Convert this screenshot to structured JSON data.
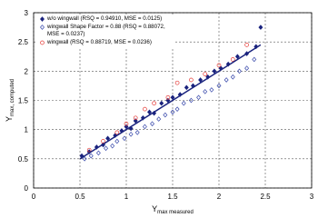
{
  "chart_data": {
    "type": "scatter",
    "x_label": {
      "main": "Y",
      "sub": "max measured"
    },
    "y_label": {
      "main": "Y",
      "sub": "max, computed"
    },
    "xlim": [
      0,
      3
    ],
    "ylim": [
      0,
      3
    ],
    "xticks": [
      0,
      0.5,
      1,
      1.5,
      2,
      2.5,
      3
    ],
    "yticks": [
      0,
      0.5,
      1,
      1.5,
      2,
      2.5,
      3
    ],
    "grid": true,
    "legend": "upper left",
    "series": [
      {
        "name": "w/o wingwall (RSQ = 0.94910, MSE = 0.0125)",
        "color": "#1a237e",
        "marker": "filled-diamond",
        "x": [
          0.52,
          0.6,
          0.68,
          0.75,
          0.8,
          0.88,
          0.95,
          1.0,
          1.05,
          1.1,
          1.18,
          1.25,
          1.3,
          1.38,
          1.45,
          1.5,
          1.58,
          1.65,
          1.72,
          1.8,
          1.88,
          1.95,
          2.02,
          2.1,
          2.2,
          2.3,
          2.4,
          2.45
        ],
        "values": [
          0.55,
          0.62,
          0.7,
          0.74,
          0.85,
          0.9,
          0.98,
          1.05,
          1.02,
          1.15,
          1.2,
          1.3,
          1.28,
          1.45,
          1.5,
          1.55,
          1.6,
          1.72,
          1.75,
          1.85,
          1.9,
          2.0,
          2.05,
          2.12,
          2.25,
          2.3,
          2.42,
          2.75
        ]
      },
      {
        "name": "wingwall Shape Factor = 0.88 (RSQ = 0.88072, MSE = 0.0237)",
        "color": "#3949ab",
        "marker": "open-diamond",
        "x": [
          0.55,
          0.62,
          0.7,
          0.78,
          0.85,
          0.9,
          0.98,
          1.05,
          1.12,
          1.2,
          1.28,
          1.35,
          1.42,
          1.5,
          1.55,
          1.62,
          1.7,
          1.78,
          1.85,
          1.92,
          2.0,
          2.08,
          2.15,
          2.22,
          2.3,
          2.38
        ],
        "values": [
          0.5,
          0.55,
          0.6,
          0.68,
          0.72,
          0.8,
          0.85,
          0.92,
          0.95,
          1.05,
          1.1,
          1.18,
          1.25,
          1.3,
          1.35,
          1.45,
          1.5,
          1.55,
          1.65,
          1.68,
          1.75,
          1.85,
          1.9,
          2.0,
          2.05,
          2.2
        ]
      },
      {
        "name": "wingwall (RSQ = 0.88719, MSE = 0.0236)",
        "color": "#e53935",
        "marker": "open-circle",
        "x": [
          0.6,
          0.75,
          0.9,
          1.0,
          1.1,
          1.2,
          1.3,
          1.45,
          1.55,
          1.7,
          1.85,
          2.0,
          2.15,
          2.3
        ],
        "values": [
          0.65,
          0.8,
          0.95,
          1.1,
          1.2,
          1.35,
          1.45,
          1.55,
          1.8,
          1.85,
          1.95,
          2.1,
          2.2,
          2.45
        ]
      }
    ],
    "fit_line": {
      "color": "#1a237e",
      "x": [
        0.5,
        2.45
      ],
      "values": [
        0.5,
        2.45
      ]
    }
  }
}
